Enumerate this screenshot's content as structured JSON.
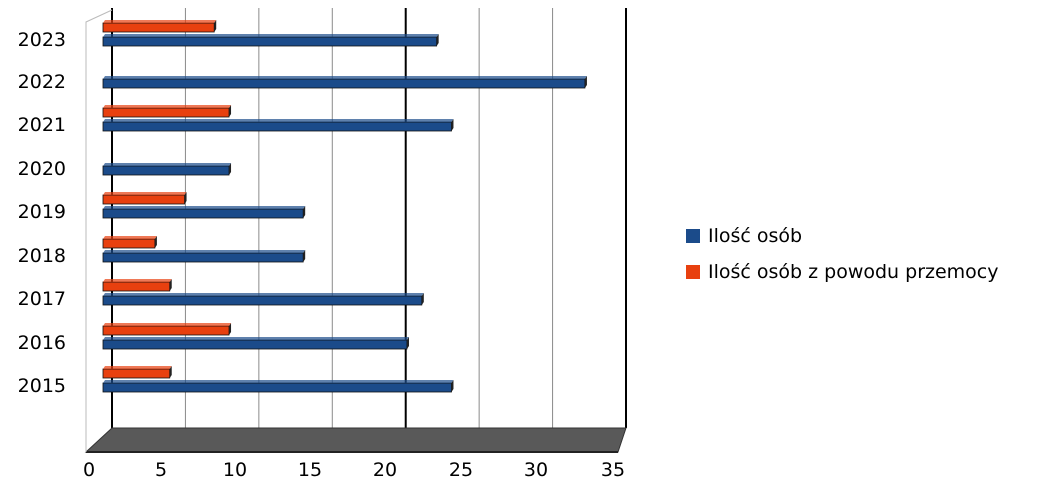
{
  "chart_data": {
    "type": "bar",
    "orientation": "horizontal",
    "categories": [
      "2015",
      "2016",
      "2017",
      "2018",
      "2019",
      "2020",
      "2021",
      "2022",
      "2023"
    ],
    "series": [
      {
        "name": "Ilość osób",
        "color": "#1b4b8a",
        "values": [
          23.5,
          20.5,
          21.5,
          13.5,
          13.5,
          8.5,
          23.5,
          32.5,
          22.5
        ]
      },
      {
        "name": "Ilość osób z powodu przemocy",
        "color": "#e8400f",
        "values": [
          4.5,
          8.5,
          4.5,
          3.5,
          5.5,
          0,
          8.5,
          0,
          7.5
        ]
      }
    ],
    "xlim": [
      0,
      35
    ],
    "xticks": [
      "0",
      "5",
      "10",
      "15",
      "20",
      "25",
      "30",
      "35"
    ],
    "grid": true,
    "legend_position": "right",
    "title": "",
    "xlabel": "",
    "ylabel": ""
  }
}
